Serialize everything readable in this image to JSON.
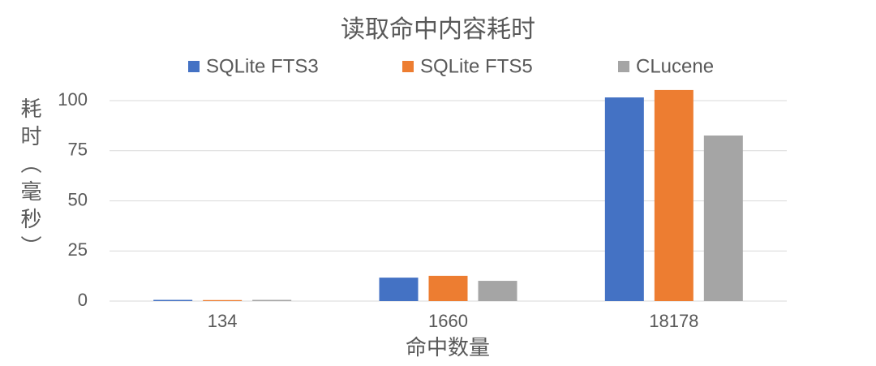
{
  "chart_data": {
    "type": "bar",
    "title": "读取命中内容耗时",
    "x_label": "命中数量",
    "y_label": "耗时（毫秒）",
    "categories": [
      "134",
      "1660",
      "18178"
    ],
    "series": [
      {
        "name": "SQLite FTS3",
        "color": "#4472c4",
        "values": [
          0.6,
          11.7,
          101.6
        ]
      },
      {
        "name": "SQLite FTS5",
        "color": "#ed7d31",
        "values": [
          0.5,
          12.6,
          105.3
        ]
      },
      {
        "name": "CLucene",
        "color": "#a5a5a5",
        "values": [
          0.6,
          10.1,
          82.6
        ]
      }
    ],
    "ylim": [
      0,
      110
    ],
    "yticks": [
      0,
      25,
      50,
      75,
      100
    ],
    "grid": true,
    "legend": "top"
  }
}
